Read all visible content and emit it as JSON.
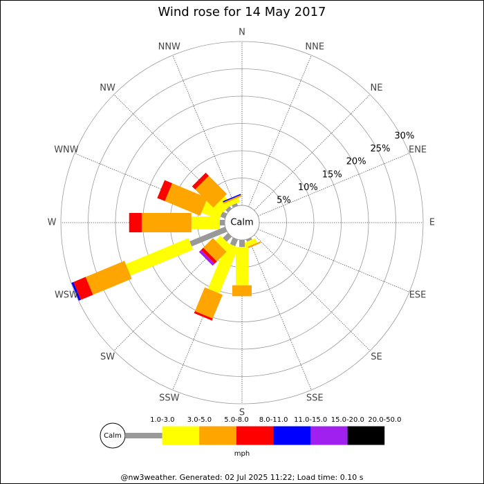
{
  "chart_data": {
    "type": "windrose",
    "title": "Wind rose for 14 May 2017",
    "calm_label": "Calm",
    "unit": "mph",
    "footer": "@nw3weather. Generated: 02 Jul 2025 11:22; Load time: 0.10 s",
    "categories": [
      "N",
      "NNE",
      "NE",
      "ENE",
      "E",
      "ESE",
      "SE",
      "SSE",
      "S",
      "SSW",
      "SW",
      "WSW",
      "W",
      "WNW",
      "NW",
      "NNW"
    ],
    "rlim": [
      0,
      30
    ],
    "rticks": [
      {
        "value": 5,
        "label": "5%"
      },
      {
        "value": 10,
        "label": "10%"
      },
      {
        "value": 15,
        "label": "15%"
      },
      {
        "value": 20,
        "label": "20%"
      },
      {
        "value": 25,
        "label": "25%"
      },
      {
        "value": 30,
        "label": "30%"
      }
    ],
    "series": [
      {
        "name": "1.0-3.0",
        "color": "#999999",
        "values": [
          0,
          0,
          0,
          0,
          0,
          0,
          0,
          0.4,
          1.3,
          1.3,
          1.3,
          7.0,
          0.9,
          0.9,
          0.6,
          0.5
        ]
      },
      {
        "name": "3.0-5.0",
        "color": "#ffff00",
        "values": [
          0,
          0,
          0,
          0,
          0,
          0,
          0,
          0.9,
          7.0,
          9.1,
          1.3,
          12.4,
          5.2,
          3.5,
          1.9,
          0.8
        ]
      },
      {
        "name": "5.0-8.0",
        "color": "#ffa500",
        "values": [
          0,
          0,
          0,
          0,
          0,
          0,
          0,
          0.3,
          2.0,
          4.7,
          2.5,
          7.7,
          9.1,
          7.0,
          4.7,
          0.3
        ]
      },
      {
        "name": "8.0-11.0",
        "color": "#ff0000",
        "values": [
          0,
          0,
          0,
          0,
          0,
          0,
          0,
          0,
          0,
          0.4,
          0.6,
          2.4,
          2.3,
          1.5,
          0.8,
          0
        ]
      },
      {
        "name": "11.0-15.0",
        "color": "#0000ff",
        "values": [
          0,
          0,
          0,
          0,
          0,
          0,
          0,
          0,
          0,
          0,
          0,
          0.4,
          0,
          0,
          0,
          0.2
        ]
      },
      {
        "name": "15.0-20.0",
        "color": "#a020f0",
        "values": [
          0,
          0,
          0,
          0,
          0,
          0,
          0,
          0,
          0,
          0,
          0.5,
          0,
          0,
          0,
          0,
          0
        ]
      },
      {
        "name": "20.0-50.0",
        "color": "#000000",
        "values": [
          0,
          0,
          0,
          0,
          0,
          0,
          0,
          0,
          0,
          0,
          0,
          0,
          0,
          0,
          0,
          0
        ]
      }
    ]
  }
}
